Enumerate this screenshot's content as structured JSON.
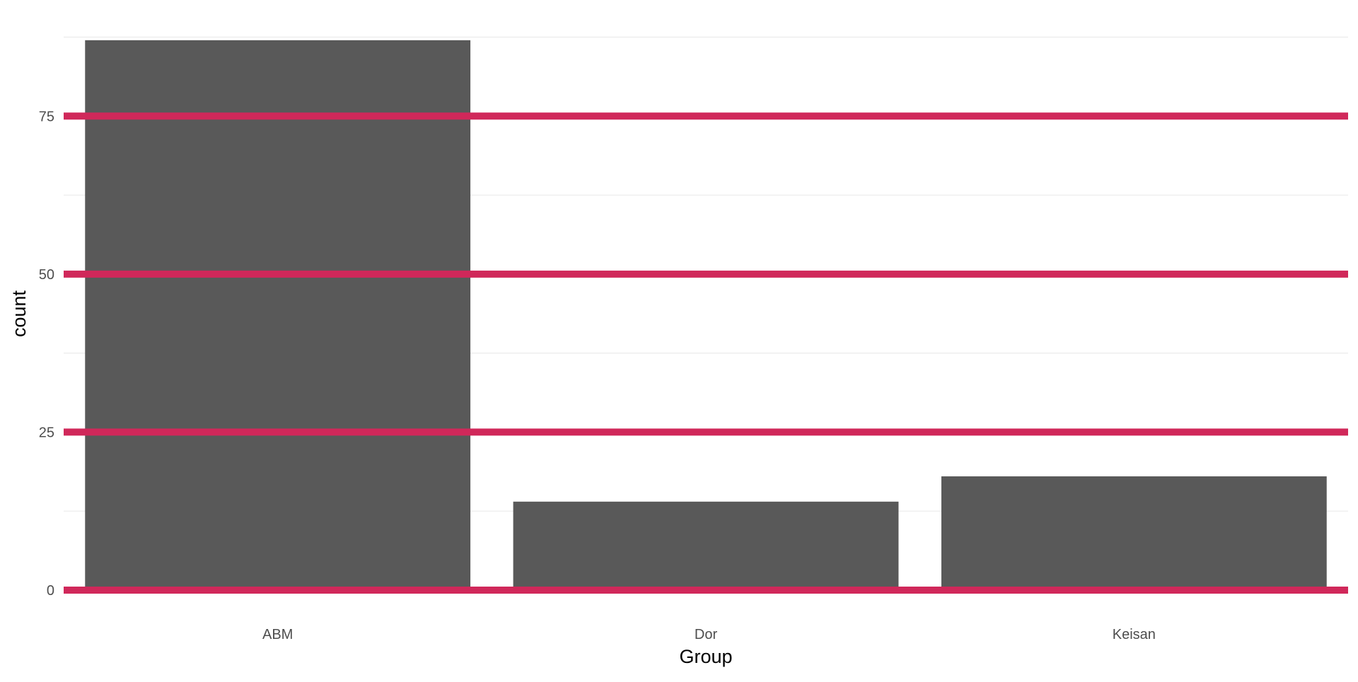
{
  "chart_data": {
    "type": "bar",
    "categories": [
      "ABM",
      "Dor",
      "Keisan"
    ],
    "values": [
      87,
      14,
      18
    ],
    "xlabel": "Group",
    "ylabel": "count",
    "ylim": [
      0,
      88
    ],
    "yticks": [
      0,
      25,
      50,
      75
    ],
    "ytick_labels": [
      "0",
      "25",
      "50",
      "75"
    ],
    "minor_gridlines": [
      12.5,
      37.5,
      62.5,
      87.5
    ],
    "reference_lines": [
      0,
      25,
      50,
      75
    ],
    "grid": true,
    "legend": "none",
    "colors": {
      "bar": "#595959",
      "reference_line": "#d0285a",
      "minor_grid": "#ebebeb",
      "tick_text": "#4d4d4d",
      "axis_title": "#000000"
    }
  }
}
